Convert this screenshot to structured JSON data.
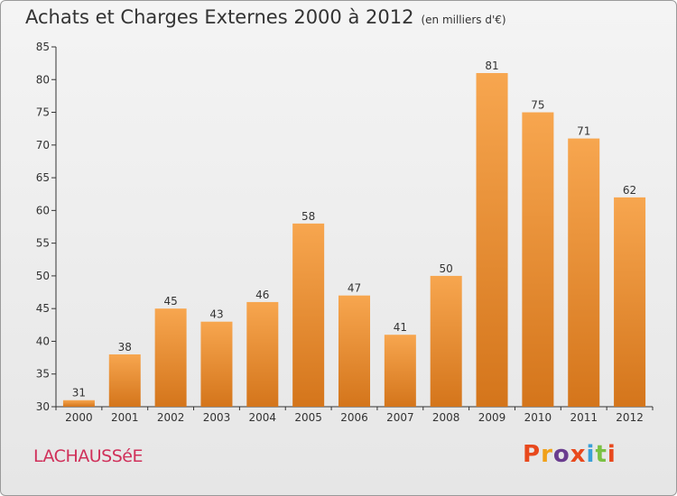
{
  "header": {
    "title": "Achats et Charges Externes 2000 à 2012",
    "unit": "(en milliers d'€)"
  },
  "footer": {
    "commune": "LACHAUSSéE",
    "brand_letters": [
      "P",
      "r",
      "o",
      "x",
      "i",
      "t",
      "i"
    ]
  },
  "colors": {
    "bar_light": "#f7a64f",
    "bar_dark": "#d4751b",
    "brand": [
      "#e8491d",
      "#f0a11a",
      "#6a3d8f",
      "#e8491d",
      "#3aa0d8",
      "#7ac143",
      "#e8491d"
    ]
  },
  "chart_data": {
    "type": "bar",
    "title": "Achats et Charges Externes 2000 à 2012",
    "subtitle": "(en milliers d'€)",
    "categories": [
      "2000",
      "2001",
      "2002",
      "2003",
      "2004",
      "2005",
      "2006",
      "2007",
      "2008",
      "2009",
      "2010",
      "2011",
      "2012"
    ],
    "values": [
      31,
      38,
      45,
      43,
      46,
      58,
      47,
      41,
      50,
      81,
      75,
      71,
      62
    ],
    "yticks": [
      30,
      35,
      40,
      45,
      50,
      55,
      60,
      65,
      70,
      75,
      80,
      85
    ],
    "ylim": [
      30,
      85
    ],
    "xlabel": "",
    "ylabel": "",
    "grid": false
  }
}
